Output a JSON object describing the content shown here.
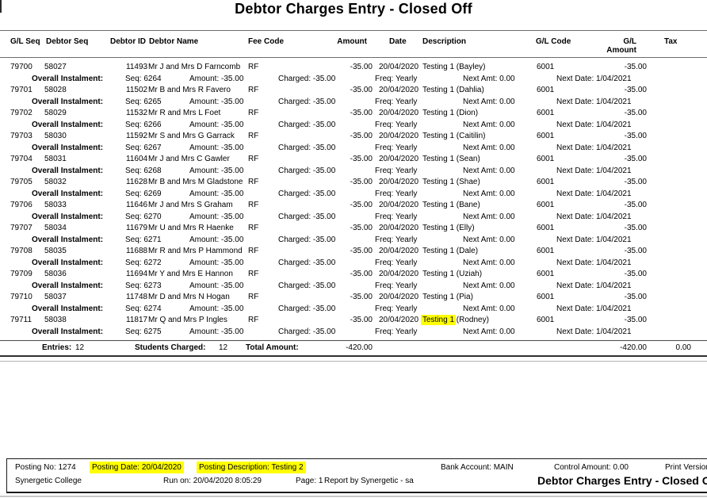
{
  "title": "Debtor Charges Entry - Closed Off",
  "colors": {
    "highlight": "#ffff00"
  },
  "table": {
    "headers": {
      "gl_seq": "G/L Seq",
      "debtor_seq": "Debtor Seq",
      "debtor_id": "Debtor ID",
      "debtor_name": "Debtor Name",
      "fee_code": "Fee Code",
      "amount": "Amount",
      "date": "Date",
      "description": "Description",
      "gl_code": "G/L Code",
      "gl_amount": "G/L Amount",
      "tax": "Tax"
    },
    "row_labels": {
      "overall": "Overall Instalment:",
      "seq": "Seq:",
      "amount": "Amount:",
      "charged": "Charged:",
      "freq": "Freq:",
      "next_amt": "Next Amt:",
      "next_date": "Next Date:"
    },
    "rows": [
      {
        "gl_seq": "79700",
        "debtor_seq": "58027",
        "debtor_id": "11493",
        "debtor_name": "Mr J and Mrs D Farncomb",
        "fee_code": "RF",
        "amount": "-35.00",
        "date": "20/04/2020",
        "desc_hl": "",
        "desc": "Testing 1 (Bayley)",
        "gl_code": "6001",
        "gl_amount": "-35.00",
        "seq": "6264",
        "inst_amount": "-35.00",
        "charged": "-35.00",
        "freq": "Yearly",
        "next_amt": "0.00",
        "next_date": "1/04/2021"
      },
      {
        "gl_seq": "79701",
        "debtor_seq": "58028",
        "debtor_id": "11502",
        "debtor_name": "Mr B and Mrs R Favero",
        "fee_code": "RF",
        "amount": "-35.00",
        "date": "20/04/2020",
        "desc_hl": "",
        "desc": "Testing 1 (Dahlia)",
        "gl_code": "6001",
        "gl_amount": "-35.00",
        "seq": "6265",
        "inst_amount": "-35.00",
        "charged": "-35.00",
        "freq": "Yearly",
        "next_amt": "0.00",
        "next_date": "1/04/2021"
      },
      {
        "gl_seq": "79702",
        "debtor_seq": "58029",
        "debtor_id": "11532",
        "debtor_name": "Mr R and Mrs L Foet",
        "fee_code": "RF",
        "amount": "-35.00",
        "date": "20/04/2020",
        "desc_hl": "",
        "desc": "Testing 1 (Dion)",
        "gl_code": "6001",
        "gl_amount": "-35.00",
        "seq": "6266",
        "inst_amount": "-35.00",
        "charged": "-35.00",
        "freq": "Yearly",
        "next_amt": "0.00",
        "next_date": "1/04/2021"
      },
      {
        "gl_seq": "79703",
        "debtor_seq": "58030",
        "debtor_id": "11592",
        "debtor_name": "Mr S and Mrs G Garrack",
        "fee_code": "RF",
        "amount": "-35.00",
        "date": "20/04/2020",
        "desc_hl": "",
        "desc": "Testing 1 (Caitilin)",
        "gl_code": "6001",
        "gl_amount": "-35.00",
        "seq": "6267",
        "inst_amount": "-35.00",
        "charged": "-35.00",
        "freq": "Yearly",
        "next_amt": "0.00",
        "next_date": "1/04/2021"
      },
      {
        "gl_seq": "79704",
        "debtor_seq": "58031",
        "debtor_id": "11604",
        "debtor_name": "Mr J and Mrs C Gawler",
        "fee_code": "RF",
        "amount": "-35.00",
        "date": "20/04/2020",
        "desc_hl": "",
        "desc": "Testing 1 (Sean)",
        "gl_code": "6001",
        "gl_amount": "-35.00",
        "seq": "6268",
        "inst_amount": "-35.00",
        "charged": "-35.00",
        "freq": "Yearly",
        "next_amt": "0.00",
        "next_date": "1/04/2021"
      },
      {
        "gl_seq": "79705",
        "debtor_seq": "58032",
        "debtor_id": "11628",
        "debtor_name": "Mr B and Mrs M Gladstone",
        "fee_code": "RF",
        "amount": "-35.00",
        "date": "20/04/2020",
        "desc_hl": "",
        "desc": "Testing 1 (Shae)",
        "gl_code": "6001",
        "gl_amount": "-35.00",
        "seq": "6269",
        "inst_amount": "-35.00",
        "charged": "-35.00",
        "freq": "Yearly",
        "next_amt": "0.00",
        "next_date": "1/04/2021"
      },
      {
        "gl_seq": "79706",
        "debtor_seq": "58033",
        "debtor_id": "11646",
        "debtor_name": "Mr J and Mrs S Graham",
        "fee_code": "RF",
        "amount": "-35.00",
        "date": "20/04/2020",
        "desc_hl": "",
        "desc": "Testing 1 (Bane)",
        "gl_code": "6001",
        "gl_amount": "-35.00",
        "seq": "6270",
        "inst_amount": "-35.00",
        "charged": "-35.00",
        "freq": "Yearly",
        "next_amt": "0.00",
        "next_date": "1/04/2021"
      },
      {
        "gl_seq": "79707",
        "debtor_seq": "58034",
        "debtor_id": "11679",
        "debtor_name": "Mr U and Mrs R Haenke",
        "fee_code": "RF",
        "amount": "-35.00",
        "date": "20/04/2020",
        "desc_hl": "",
        "desc": "Testing 1 (Elly)",
        "gl_code": "6001",
        "gl_amount": "-35.00",
        "seq": "6271",
        "inst_amount": "-35.00",
        "charged": "-35.00",
        "freq": "Yearly",
        "next_amt": "0.00",
        "next_date": "1/04/2021"
      },
      {
        "gl_seq": "79708",
        "debtor_seq": "58035",
        "debtor_id": "11688",
        "debtor_name": "Mr R and Mrs P Hammond",
        "fee_code": "RF",
        "amount": "-35.00",
        "date": "20/04/2020",
        "desc_hl": "",
        "desc": "Testing 1 (Dale)",
        "gl_code": "6001",
        "gl_amount": "-35.00",
        "seq": "6272",
        "inst_amount": "-35.00",
        "charged": "-35.00",
        "freq": "Yearly",
        "next_amt": "0.00",
        "next_date": "1/04/2021"
      },
      {
        "gl_seq": "79709",
        "debtor_seq": "58036",
        "debtor_id": "11694",
        "debtor_name": "Mr Y and Mrs E Hannon",
        "fee_code": "RF",
        "amount": "-35.00",
        "date": "20/04/2020",
        "desc_hl": "",
        "desc": "Testing 1 (Uziah)",
        "gl_code": "6001",
        "gl_amount": "-35.00",
        "seq": "6273",
        "inst_amount": "-35.00",
        "charged": "-35.00",
        "freq": "Yearly",
        "next_amt": "0.00",
        "next_date": "1/04/2021"
      },
      {
        "gl_seq": "79710",
        "debtor_seq": "58037",
        "debtor_id": "11748",
        "debtor_name": "Mr D and Mrs N Hogan",
        "fee_code": "RF",
        "amount": "-35.00",
        "date": "20/04/2020",
        "desc_hl": "",
        "desc": "Testing 1 (Pia)",
        "gl_code": "6001",
        "gl_amount": "-35.00",
        "seq": "6274",
        "inst_amount": "-35.00",
        "charged": "-35.00",
        "freq": "Yearly",
        "next_amt": "0.00",
        "next_date": "1/04/2021"
      },
      {
        "gl_seq": "79711",
        "debtor_seq": "58038",
        "debtor_id": "11817",
        "debtor_name": "Mr Q and Mrs P Ingles",
        "fee_code": "RF",
        "amount": "-35.00",
        "date": "20/04/2020",
        "desc_hl": "Testing 1",
        "desc": " (Rodney)",
        "gl_code": "6001",
        "gl_amount": "-35.00",
        "seq": "6275",
        "inst_amount": "-35.00",
        "charged": "-35.00",
        "freq": "Yearly",
        "next_amt": "0.00",
        "next_date": "1/04/2021"
      }
    ],
    "totals": {
      "entries_label": "Entries:",
      "entries": "12",
      "students_label": "Students Charged:",
      "students": "12",
      "total_label": "Total Amount:",
      "total": "-420.00",
      "gl_total": "-420.00",
      "tax_total": "0.00"
    }
  },
  "footer": {
    "posting_no": "Posting No: 1274",
    "posting_date": "Posting Date: 20/04/2020",
    "posting_desc": "Posting Description: Testing 2",
    "bank_account": "Bank Account: MAIN",
    "control_amount": "Control Amount: 0.00",
    "print_version": "Print Version:",
    "college": "Synergetic College",
    "run_on": "Run on: 20/04/2020 8:05:29",
    "page": "Page: 1",
    "report_by": "Report by Synergetic - sa",
    "report_title": "Debtor Charges Entry - Closed Off"
  }
}
